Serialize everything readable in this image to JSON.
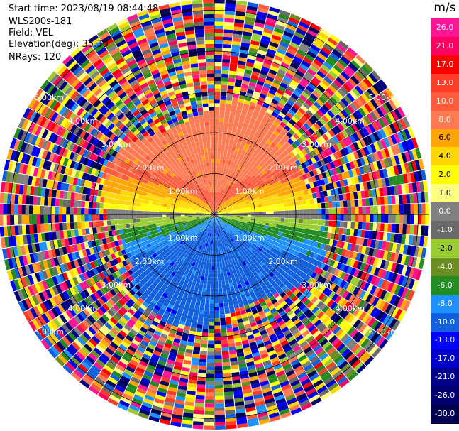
{
  "header": {
    "start_time": "Start time: 2023/08/19 08:44:48",
    "instrument": "WLS200s-181",
    "field": "Field: VEL",
    "elevation": "Elevation(deg): 35.30",
    "nrays": "NRays: 120"
  },
  "chart_data": {
    "type": "heatmap",
    "projection": "polar",
    "field": "VEL",
    "unit": "m/s",
    "n_rays": 120,
    "grid_on": true,
    "range_rings_km": [
      1.0,
      2.0,
      3.0,
      4.0,
      5.0
    ],
    "ring_labels": [
      "1.00km",
      "2.00km",
      "3.00km",
      "4.00km",
      "5.00km"
    ],
    "colorbar": {
      "position": "right",
      "ticks": [
        "26.0",
        "21.0",
        "17.0",
        "13.0",
        "10.0",
        "8.0",
        "6.0",
        "4.0",
        "2.0",
        "1.0",
        "0.0",
        "-1.0",
        "-2.0",
        "-4.0",
        "-6.0",
        "-8.0",
        "-10.0",
        "-13.0",
        "-17.0",
        "-21.0",
        "-26.0",
        "-30.0"
      ],
      "colors": [
        "#ff1493",
        "#ff0060",
        "#ff0000",
        "#ff3c28",
        "#ff5a3c",
        "#ff7a50",
        "#ffa500",
        "#ffd700",
        "#ffff00",
        "#ffff80",
        "#808080",
        "#696969",
        "#9acd32",
        "#6b8e23",
        "#228b22",
        "#1e90ff",
        "#1060e0",
        "#0000ff",
        "#0000cd",
        "#00008b",
        "#000070",
        "#000050"
      ]
    }
  }
}
